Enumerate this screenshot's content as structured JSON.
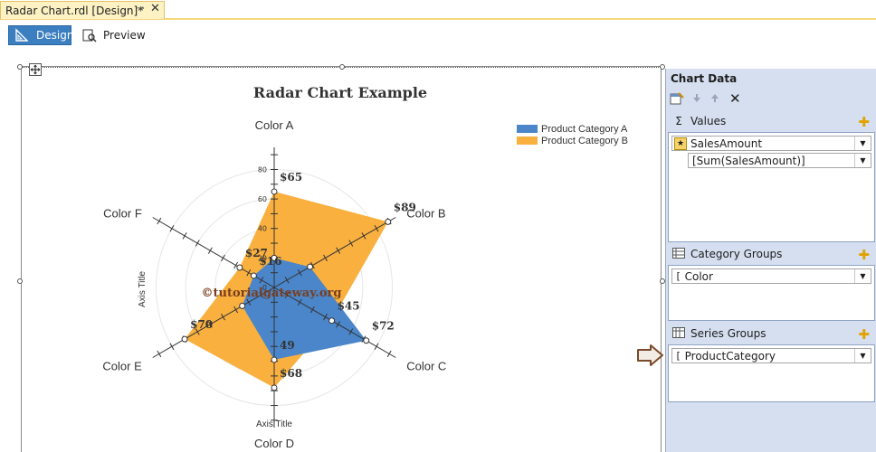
{
  "document_tab": {
    "title": "Radar Chart.rdl [Design]*",
    "pin_glyph": "⊸",
    "close_glyph": "✕"
  },
  "mode_tabs": {
    "design": "Design",
    "preview": "Preview"
  },
  "chart_panel": {
    "title": "Chart Data",
    "values_label": "Values",
    "values_field": "SalesAmount",
    "values_expression": "[Sum(SalesAmount)]",
    "category_groups_label": "Category Groups",
    "category_field": "Color",
    "series_groups_label": "Series Groups",
    "series_field": "ProductCategory",
    "sigma_glyph": "Σ",
    "plus_glyph": "✚",
    "dropdown_glyph": "▼",
    "bracket_glyph": "[",
    "delete_glyph": "✕"
  },
  "watermark": "©tutorialgateway.org",
  "chart_data": {
    "type": "radar",
    "title": "Radar Chart Example",
    "categories": [
      "Color A",
      "Color B",
      "Color C",
      "Color D",
      "Color E",
      "Color F"
    ],
    "series": [
      {
        "name": "Product Category A",
        "values": [
          20,
          28,
          72,
          49,
          25,
          16
        ],
        "color": "#4a86c9"
      },
      {
        "name": "Product Category B",
        "values": [
          65,
          89,
          45,
          68,
          70,
          27
        ],
        "color": "#f9b03f"
      }
    ],
    "data_labels": [
      {
        "text": "$65",
        "category": "Color A",
        "value": 65
      },
      {
        "text": "$89",
        "category": "Color B",
        "value": 89
      },
      {
        "text": "$72",
        "category": "Color C",
        "value": 72
      },
      {
        "text": "$45",
        "category": "Color C",
        "value": 45
      },
      {
        "text": "$68",
        "category": "Color D",
        "value": 68
      },
      {
        "text": "49",
        "category": "Color D",
        "value": 49
      },
      {
        "text": "$70",
        "category": "Color E",
        "value": 70
      },
      {
        "text": "$27",
        "category": "Color F",
        "value": 27
      },
      {
        "text": "$16",
        "category": "Color F",
        "value": 16
      }
    ],
    "y_ticks": [
      0,
      20,
      40,
      60,
      80
    ],
    "ylim": [
      0,
      95
    ],
    "ylabel": "Axis Title",
    "xlabel": "Axis Title",
    "legend_position": "top-right",
    "grid": true
  }
}
